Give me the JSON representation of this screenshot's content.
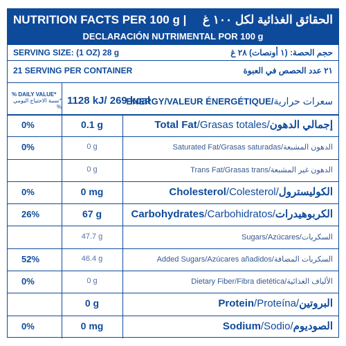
{
  "header": {
    "title_en": "NUTRITION FACTS PER 100 g |",
    "title_ar": "الحقائق الغذائية لكل ١٠٠ غ",
    "subtitle": "DECLARACIÓN NUTRIMENTAL POR 100 g"
  },
  "serving": {
    "size_en": "SERVING SIZE: (1 OZ) 28 g",
    "size_ar": "حجم الحصة: (١ أونصات) ٢٨ غ",
    "per_container_en": "21 SERVING PER CONTAINER",
    "per_container_ar": "٢١ عدد الحصص في العبوة"
  },
  "energy": {
    "dv_label_en": "% DAILY VALUE*",
    "dv_label_ar": "*نسبة الاحتياج اليومي %",
    "value": "1128 kJ/ 269 kcal",
    "label": "ENERGY/VALEUR ÉNERGÉTIQUE/",
    "label_ar": "سعرات حرارية"
  },
  "nutrients": [
    {
      "pct": "0%",
      "amount": "0.1 g",
      "name_en": "Total Fat",
      "name_es": "/Grasas totales/",
      "name_ar": "إجمالي الدهون"
    },
    {
      "pct": "0%",
      "amount": "0 g",
      "name_en": "Saturated Fat",
      "name_es": "/Grasas saturadas/",
      "name_ar": "الدهون المشبعة"
    },
    {
      "pct": "",
      "amount": "0 g",
      "name_en": "Trans Fat",
      "name_es": "/Grasas trans/",
      "name_ar": "الدهون غير المشبعة"
    },
    {
      "pct": "0%",
      "amount": "0 mg",
      "name_en": "Cholesterol",
      "name_es": "/Colesterol/",
      "name_ar": "الكوليسترول"
    },
    {
      "pct": "26%",
      "amount": "67 g",
      "name_en": "Carbohydrates",
      "name_es": "/Carbohidratos/",
      "name_ar": "الكربوهيدرات"
    },
    {
      "pct": "",
      "amount": "47.7 g",
      "name_en": "Sugars",
      "name_es": "/Azúcares/",
      "name_ar": "السكريات"
    },
    {
      "pct": "52%",
      "amount": "46.4 g",
      "name_en": "Added Sugars",
      "name_es": "/Azúcares añadidos/",
      "name_ar": "السكريات المضافة"
    },
    {
      "pct": "0%",
      "amount": "0 g",
      "name_en": "Dietary Fiber",
      "name_es": "/Fibra dietética/",
      "name_ar": "الألياف الغذائية"
    },
    {
      "pct": "",
      "amount": "0 g",
      "name_en": "Protein",
      "name_es": "/Proteína/",
      "name_ar": "البروتين"
    },
    {
      "pct": "0%",
      "amount": "0 mg",
      "name_en": "Sodium",
      "name_es": "/Sodio/",
      "name_ar": "الصوديوم"
    }
  ]
}
